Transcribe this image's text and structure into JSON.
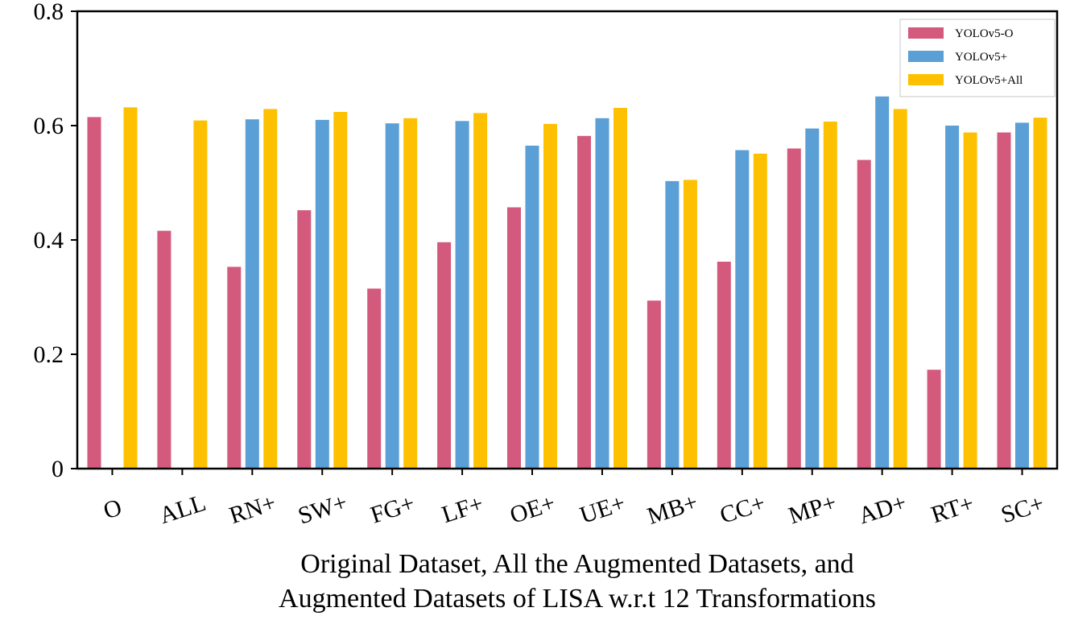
{
  "chart_data": {
    "type": "bar",
    "title": "",
    "xlabel": [
      "Original Dataset, All the Augmented Datasets, and",
      "Augmented Datasets of LISA w.r.t 12 Transformations"
    ],
    "ylabel": "",
    "ylim": [
      0,
      0.8
    ],
    "yticks": [
      "0",
      "0.2",
      "0.4",
      "0.6",
      "0.8"
    ],
    "ytick_values": [
      0,
      0.2,
      0.4,
      0.6,
      0.8
    ],
    "categories": [
      "O",
      "ALL",
      "RN+",
      "SW+",
      "FG+",
      "LF+",
      "OE+",
      "UE+",
      "MB+",
      "CC+",
      "MP+",
      "AD+",
      "RT+",
      "SC+"
    ],
    "legend_position": "top-right",
    "grid": false,
    "series": [
      {
        "name": "YOLOv5-O",
        "color": "#d45a7d",
        "values": [
          0.615,
          0.416,
          0.353,
          0.452,
          0.315,
          0.396,
          0.457,
          0.582,
          0.294,
          0.362,
          0.56,
          0.54,
          0.173,
          0.588
        ]
      },
      {
        "name": "YOLOv5+",
        "color": "#5a9fd6",
        "values": [
          null,
          null,
          0.611,
          0.61,
          0.604,
          0.608,
          0.565,
          0.613,
          0.503,
          0.557,
          0.595,
          0.651,
          0.6,
          0.605
        ]
      },
      {
        "name": "YOLOv5+All",
        "color": "#fdc102",
        "values": [
          0.632,
          0.609,
          0.629,
          0.624,
          0.613,
          0.622,
          0.603,
          0.631,
          0.505,
          0.551,
          0.607,
          0.629,
          0.588,
          0.614
        ]
      }
    ]
  }
}
